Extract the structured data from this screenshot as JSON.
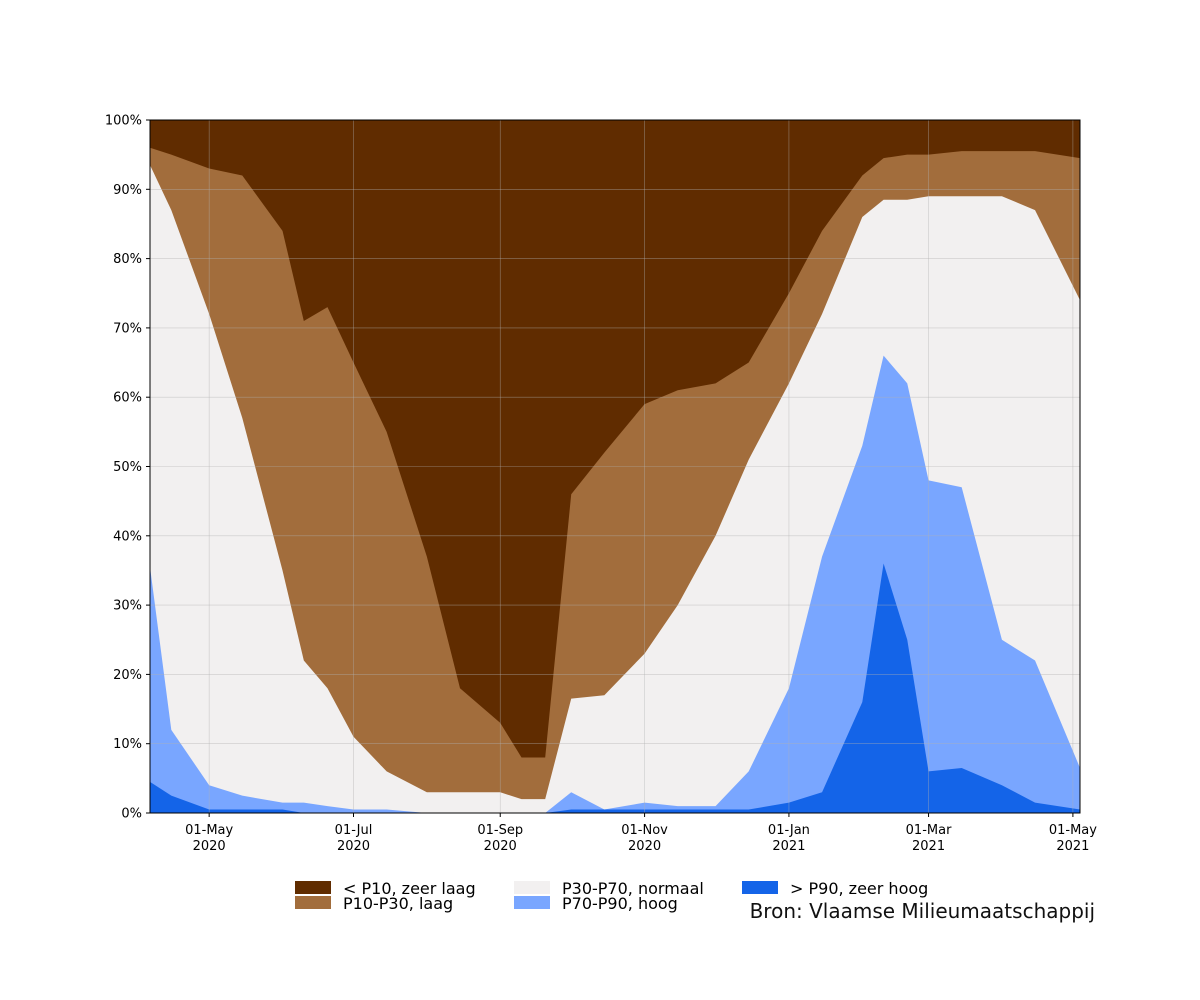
{
  "chart_data": {
    "type": "area",
    "stacked_percent": true,
    "x_range": [
      "2020-04-06",
      "2021-05-04"
    ],
    "ylim": [
      0,
      100
    ],
    "y_ticks": [
      "0%",
      "10%",
      "20%",
      "30%",
      "40%",
      "50%",
      "60%",
      "70%",
      "80%",
      "90%",
      "100%"
    ],
    "x_ticks": [
      {
        "date": "2020-05-01",
        "line1": "01-May",
        "line2": "2020"
      },
      {
        "date": "2020-07-01",
        "line1": "01-Jul",
        "line2": "2020"
      },
      {
        "date": "2020-09-01",
        "line1": "01-Sep",
        "line2": "2020"
      },
      {
        "date": "2020-11-01",
        "line1": "01-Nov",
        "line2": "2020"
      },
      {
        "date": "2021-01-01",
        "line1": "01-Jan",
        "line2": "2021"
      },
      {
        "date": "2021-03-01",
        "line1": "01-Mar",
        "line2": "2021"
      },
      {
        "date": "2021-05-01",
        "line1": "01-May",
        "line2": "2021"
      }
    ],
    "grid": true,
    "legend_position": "bottom",
    "boundary_dates": [
      "2020-04-06",
      "2020-04-15",
      "2020-05-01",
      "2020-05-15",
      "2020-06-01",
      "2020-06-10",
      "2020-06-20",
      "2020-07-01",
      "2020-07-15",
      "2020-08-01",
      "2020-08-15",
      "2020-09-01",
      "2020-09-10",
      "2020-09-20",
      "2020-10-01",
      "2020-10-15",
      "2020-11-01",
      "2020-11-15",
      "2020-12-01",
      "2020-12-15",
      "2021-01-01",
      "2021-01-15",
      "2021-02-01",
      "2021-02-10",
      "2021-02-20",
      "2021-03-01",
      "2021-03-15",
      "2021-04-01",
      "2021-04-15",
      "2021-05-04"
    ],
    "series": [
      {
        "name": "> P90, zeer hoog",
        "color": "#1464e8",
        "cumulative_top": [
          4.5,
          2.5,
          0.5,
          0.5,
          0.5,
          0,
          0,
          0,
          0,
          0,
          0,
          0,
          0,
          0,
          0.5,
          0.5,
          0.5,
          0.5,
          0.5,
          0.5,
          1.5,
          3,
          16,
          36,
          25,
          6,
          6.5,
          4,
          1.5,
          0.5
        ]
      },
      {
        "name": "P70-P90, hoog",
        "color": "#79a6ff",
        "cumulative_top": [
          35.5,
          12,
          4,
          2.5,
          1.5,
          1.5,
          1,
          0.5,
          0.5,
          0,
          0,
          0,
          0,
          0,
          3,
          0.5,
          1.5,
          1,
          1,
          6,
          18,
          37,
          53,
          66,
          62,
          48,
          47,
          25,
          22,
          6.5
        ]
      },
      {
        "name": "P30-P70, normaal",
        "color": "#f2f0f0",
        "cumulative_top": [
          93.5,
          87,
          72,
          57,
          35,
          22,
          18,
          11,
          6,
          3,
          3,
          3,
          2,
          2,
          16.5,
          17,
          23,
          30,
          40,
          51,
          62,
          72,
          86,
          88.5,
          88.5,
          89,
          89,
          89,
          87,
          74
        ]
      },
      {
        "name": "P10-P30, laag",
        "color": "#a26d3c",
        "cumulative_top": [
          96,
          95,
          93,
          92,
          84,
          71,
          73,
          65,
          55,
          37,
          18,
          13,
          8,
          8,
          46,
          52,
          59,
          61,
          62,
          65,
          75,
          84,
          92,
          94.5,
          95,
          95,
          95.5,
          95.5,
          95.5,
          94.5
        ]
      },
      {
        "name": "< P10, zeer laag",
        "color": "#602c00",
        "cumulative_top": [
          100,
          100,
          100,
          100,
          100,
          100,
          100,
          100,
          100,
          100,
          100,
          100,
          100,
          100,
          100,
          100,
          100,
          100,
          100,
          100,
          100,
          100,
          100,
          100,
          100,
          100,
          100,
          100,
          100,
          100
        ]
      }
    ]
  },
  "source": "Bron: Vlaamse Milieumaatschappij",
  "grid_color": "#b0b0b0"
}
